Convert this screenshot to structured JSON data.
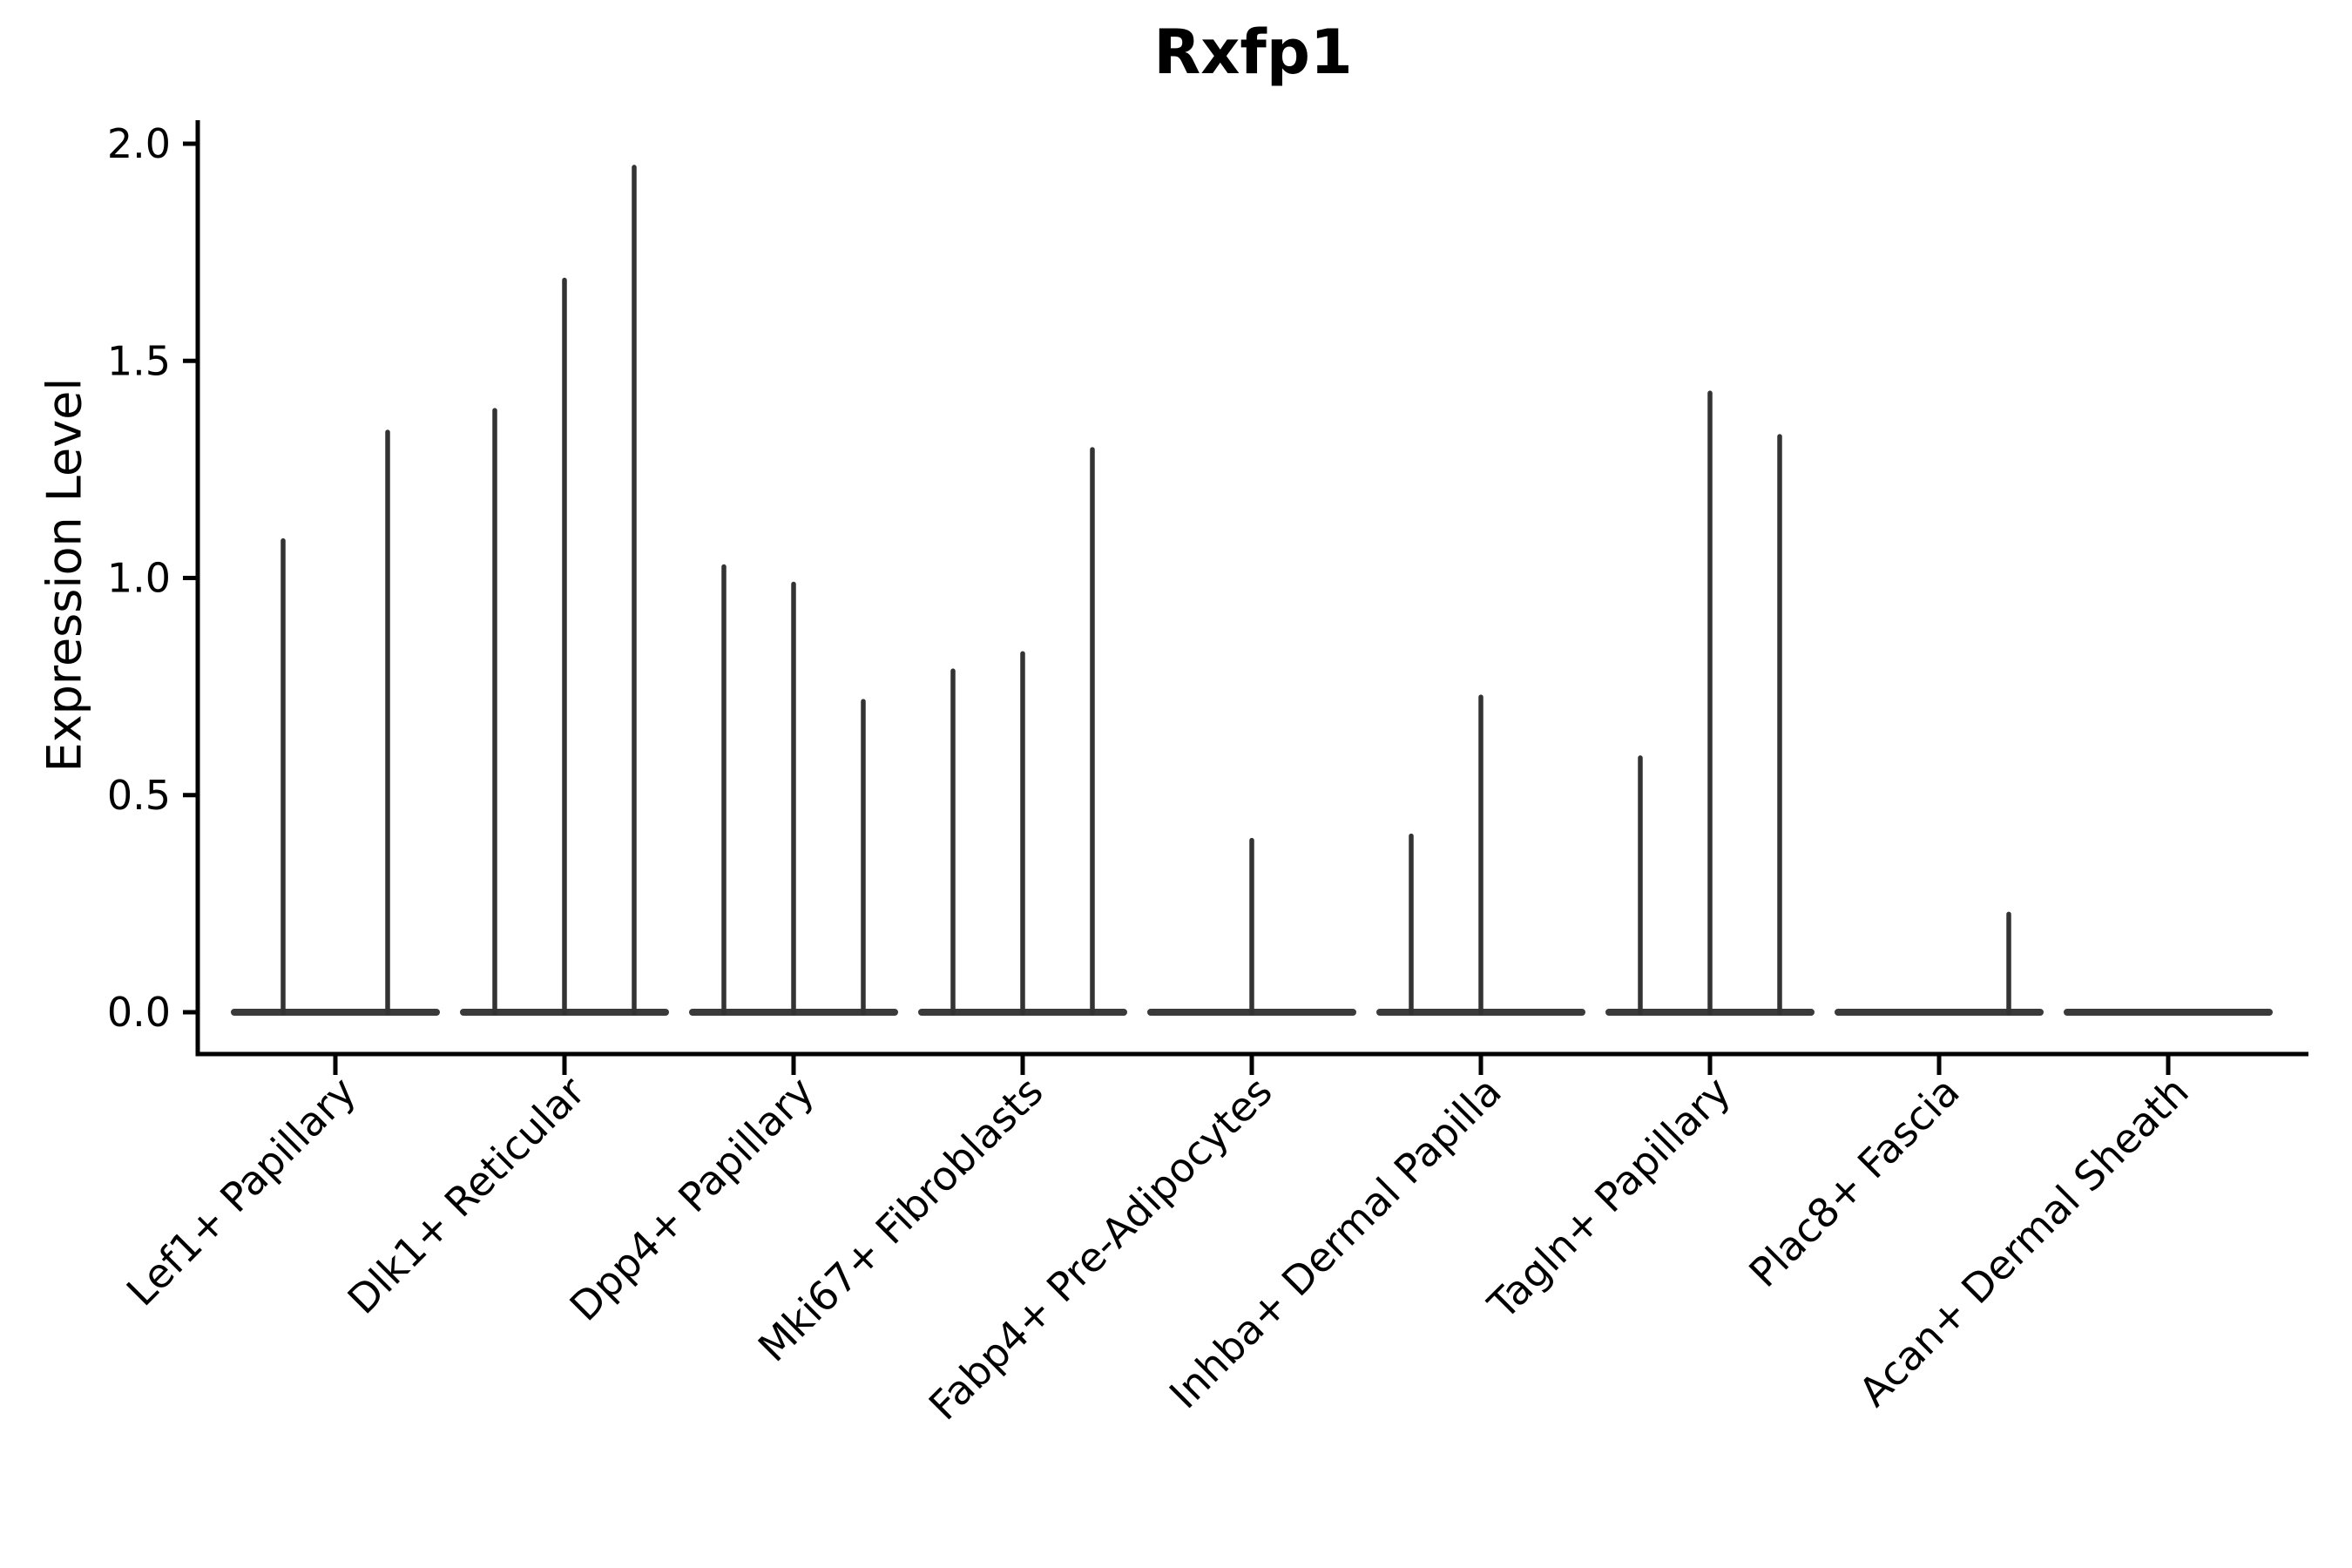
{
  "chart_data": {
    "type": "violin",
    "title": "Rxfp1",
    "xlabel": "",
    "ylabel": "Expression Level",
    "ylim": [
      0,
      2.05
    ],
    "yticks": [
      0.0,
      0.5,
      1.0,
      1.5,
      2.0
    ],
    "ytick_labels": [
      "0.0",
      "0.5",
      "1.0",
      "1.5",
      "2.0"
    ],
    "categories": [
      "Lef1+ Papillary",
      "Dlk1+ Reticular",
      "Dpp4+ Papillary",
      "Mki67+ Fibroblasts",
      "Fabp4+ Pre-Adipocytes",
      "Inhba+ Dermal Papilla",
      "Tagln+ Papillary",
      "Plac8+ Fascia",
      "Acan+ Dermal Sheath"
    ],
    "violins": [
      {
        "category": "Lef1+ Papillary",
        "maxima": [
          1.09,
          1.34
        ]
      },
      {
        "category": "Dlk1+ Reticular",
        "maxima": [
          1.39,
          1.69,
          1.95
        ]
      },
      {
        "category": "Dpp4+ Papillary",
        "maxima": [
          1.03,
          0.99,
          0.72
        ]
      },
      {
        "category": "Mki67+ Fibroblasts",
        "maxima": [
          0.79,
          0.83,
          1.3
        ]
      },
      {
        "category": "Fabp4+ Pre-Adipocytes",
        "maxima": [
          0.0,
          0.4,
          0.0
        ]
      },
      {
        "category": "Inhba+ Dermal Papilla",
        "maxima": [
          0.41,
          0.73,
          0.0
        ]
      },
      {
        "category": "Tagln+ Papillary",
        "maxima": [
          0.59,
          1.43,
          1.33
        ]
      },
      {
        "category": "Plac8+ Fascia",
        "maxima": [
          0.0,
          0.0,
          0.23
        ]
      },
      {
        "category": "Acan+ Dermal Sheath",
        "maxima": [
          0.0,
          0.0,
          0.0
        ]
      }
    ],
    "layout": {
      "grid": false,
      "legend": "none",
      "spines": [
        "left",
        "bottom"
      ],
      "x_tick_label_rotation_deg": 45,
      "violin_shape_note": "flat baseline at 0 with thin vertical spike up to max"
    },
    "style": {
      "violin_color": "#333333",
      "baseline_color": "#3a3a3a",
      "axis_color": "#000000",
      "text_color": "#000000",
      "background": "#ffffff"
    }
  }
}
